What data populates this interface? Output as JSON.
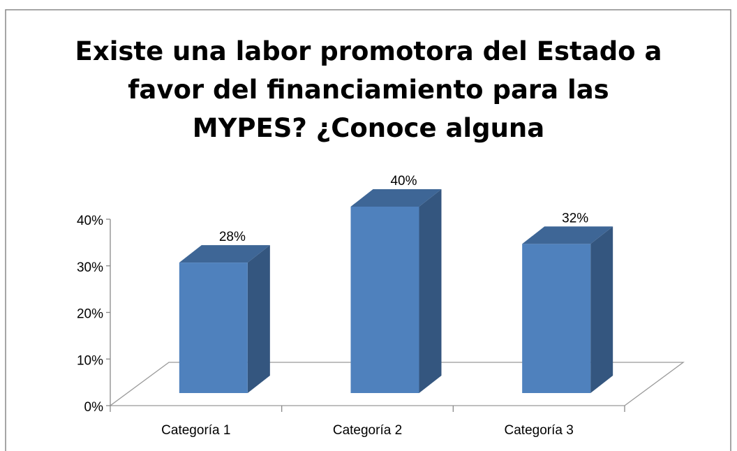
{
  "chart_data": {
    "type": "bar3d",
    "title": "Existe una labor promotora del Estado a favor del financiamiento para las MYPES? ¿Conoce alguna",
    "categories": [
      "Categoría 1",
      "Categoría 2",
      "Categoría 3"
    ],
    "values": [
      28,
      40,
      32
    ],
    "value_labels": [
      "28%",
      "40%",
      "32%"
    ],
    "color": "#4f81bd",
    "ylim": [
      0,
      40
    ],
    "yticks": [
      {
        "value": 0,
        "label": "0%"
      },
      {
        "value": 10,
        "label": "10%"
      },
      {
        "value": 20,
        "label": "20%"
      },
      {
        "value": 30,
        "label": "30%"
      },
      {
        "value": 40,
        "label": "40%"
      }
    ]
  }
}
